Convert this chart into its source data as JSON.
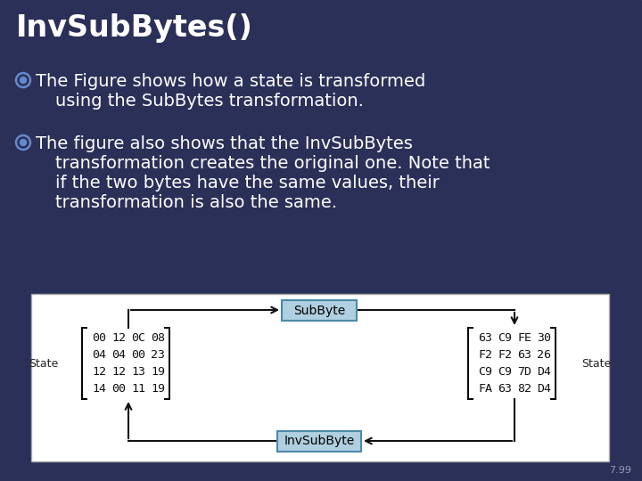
{
  "title": "InvSubBytes()",
  "bg_color": "#2B3058",
  "bullet1_line1": "The Figure shows how a state is transformed",
  "bullet1_line2": "    using the SubBytes transformation.",
  "bullet2_line1": "The figure also shows that the InvSubBytes",
  "bullet2_line2": "    transformation creates the original one. Note that",
  "bullet2_line3": "    if the two bytes have the same values, their",
  "bullet2_line4": "    transformation is also the same.",
  "matrix_left": [
    [
      "00",
      "12",
      "0C",
      "08"
    ],
    [
      "04",
      "04",
      "00",
      "23"
    ],
    [
      "12",
      "12",
      "13",
      "19"
    ],
    [
      "14",
      "00",
      "11",
      "19"
    ]
  ],
  "matrix_right": [
    [
      "63",
      "C9",
      "FE",
      "30"
    ],
    [
      "F2",
      "F2",
      "63",
      "26"
    ],
    [
      "C9",
      "C9",
      "7D",
      "D4"
    ],
    [
      "FA",
      "63",
      "82",
      "D4"
    ]
  ],
  "label_left": "State",
  "label_right": "State",
  "box_subbyte": "SubByte",
  "box_invsubbyte": "InvSubByte",
  "box_color": "#b0cfe0",
  "box_border": "#4a8aaa",
  "page_num": "7.99",
  "text_color": "#ffffff",
  "diagram_bg": "#ffffff",
  "diagram_border": "#aaaaaa",
  "matrix_text_color": "#111111",
  "arrow_color": "#111111",
  "bullet_color": "#6688cc"
}
